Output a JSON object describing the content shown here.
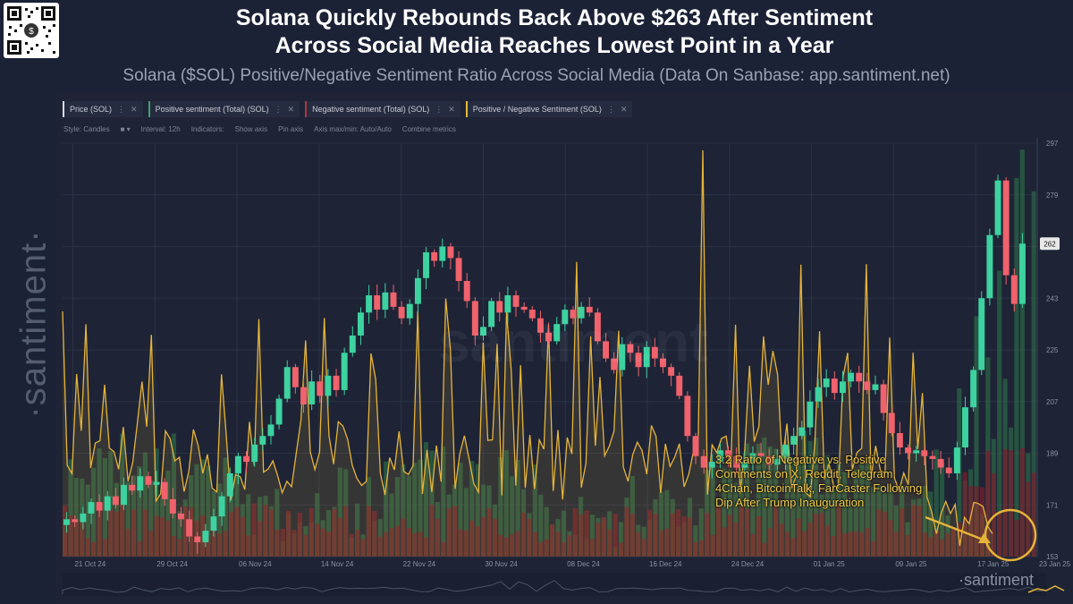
{
  "header": {
    "title_line1": "Solana Quickly Rebounds Back Above $263 After Sentiment",
    "title_line2": "Across Social Media Reaches Lowest Point in a Year",
    "subtitle": "Solana ($SOL) Positive/Negative Sentiment Ratio Across Social Media (Data On Sanbase: app.santiment.net)"
  },
  "brand": {
    "side": "·santiment·",
    "watermark": "santiment",
    "footer": "·santiment"
  },
  "legend": [
    {
      "label": "Price (SOL)",
      "color": "#d9dce3"
    },
    {
      "label": "Positive sentiment (Total) (SOL)",
      "color": "#3fa06e"
    },
    {
      "label": "Negative sentiment (Total) (SOL)",
      "color": "#b03642"
    },
    {
      "label": "Positive / Negative Sentiment (SOL)",
      "color": "#e5b93c"
    }
  ],
  "toolbar": [
    "Style: Candles",
    "Interval: 12h",
    "Indicators:",
    "Show axis",
    "Pin axis",
    "Axis max/min: Auto/Auto",
    "Combine metrics"
  ],
  "callout": {
    "lines": [
      "3:2 Ratio of Negative vs. Positive",
      "Comments on X, Reddit, Telegram,",
      "4Chan, BitcoinTalk, FarCaster Following",
      "Dip After Trump Inauguration"
    ]
  },
  "colors": {
    "up": "#3dd2a0",
    "down": "#f0626c",
    "positive": "#2f7a4a",
    "negative": "#7a1e2c",
    "ratio": "#e6b43a",
    "grid": "#2b3246",
    "current_price": "#e8e8e8"
  },
  "chart_data": {
    "type": "line",
    "title": "Solana ($SOL) Positive/Negative Sentiment Ratio Across Social Media",
    "x_range": [
      "2024-10-20",
      "2025-01-23"
    ],
    "x_ticks": [
      "21 Oct 24",
      "29 Oct 24",
      "06 Nov 24",
      "14 Nov 24",
      "22 Nov 24",
      "30 Nov 24",
      "08 Dec 24",
      "16 Dec 24",
      "24 Dec 24",
      "01 Jan 25",
      "09 Jan 25",
      "17 Jan 25",
      "23 Jan 25"
    ],
    "y_ticks": [
      153,
      171,
      189,
      207,
      225,
      243,
      261,
      279,
      297
    ],
    "ylim": [
      153,
      297
    ],
    "current_price_label": "262",
    "price_series": {
      "name": "Price (SOL)",
      "closes": [
        166,
        165,
        168,
        172,
        169,
        174,
        171,
        178,
        176,
        181,
        178,
        179,
        173,
        168,
        166,
        160,
        158,
        162,
        167,
        174,
        182,
        188,
        186,
        192,
        195,
        199,
        208,
        219,
        212,
        206,
        214,
        209,
        216,
        211,
        224,
        230,
        238,
        244,
        239,
        245,
        240,
        236,
        241,
        250,
        259,
        256,
        261,
        257,
        249,
        242,
        230,
        233,
        242,
        238,
        244,
        240,
        239,
        236,
        231,
        228,
        234,
        239,
        236,
        240,
        238,
        228,
        222,
        218,
        227,
        224,
        219,
        226,
        222,
        219,
        216,
        209,
        195,
        188,
        184,
        186,
        190,
        188,
        184,
        186,
        189,
        188,
        185,
        187,
        192,
        195,
        198,
        207,
        212,
        215,
        210,
        214,
        217,
        214,
        211,
        213,
        203,
        196,
        191,
        189,
        190,
        188,
        187,
        184,
        182,
        191,
        205,
        218,
        243,
        265,
        284,
        251,
        241,
        262
      ]
    },
    "series": [
      {
        "name": "Positive sentiment (Total) (SOL)",
        "peak": "2025-01-21"
      },
      {
        "name": "Negative sentiment (Total) (SOL)",
        "peak": "2025-01-21"
      },
      {
        "name": "Positive / Negative Sentiment (SOL)",
        "peak": "2024-12-25",
        "low": "2025-01-21"
      }
    ],
    "annotation": "3:2 Ratio of Negative vs. Positive Comments on X, Reddit, Telegram, 4Chan, BitcoinTalk, FarCaster Following Dip After Trump Inauguration"
  }
}
